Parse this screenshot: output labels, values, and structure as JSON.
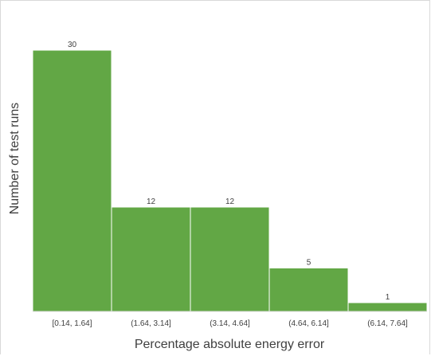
{
  "chart_data": {
    "type": "bar",
    "title": "",
    "xlabel": "Percentage absolute energy error",
    "ylabel": "Number of test runs",
    "categories": [
      "[0.14, 1.64]",
      "(1.64, 3.14]",
      "(3.14, 4.64]",
      "(4.64, 6.14]",
      "(6.14, 7.64]"
    ],
    "values": [
      30,
      12,
      12,
      5,
      1
    ],
    "ylim": [
      0,
      30
    ],
    "grid": false,
    "legend": "none",
    "bar_color": "#62a745",
    "bar_gap_color": "#ffffff"
  }
}
